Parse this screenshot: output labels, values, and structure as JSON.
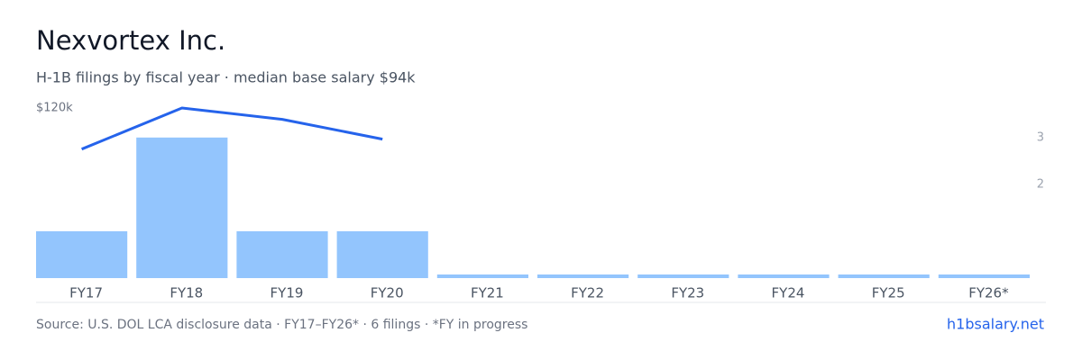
{
  "chart_data": {
    "type": "bar-line",
    "title": "Nexvortex Inc.",
    "subtitle": "H-1B filings by fiscal year · median base salary $94k",
    "categories": [
      "FY17",
      "FY18",
      "FY19",
      "FY20",
      "FY21",
      "FY22",
      "FY23",
      "FY24",
      "FY25",
      "FY26*"
    ],
    "series": [
      {
        "name": "Filings",
        "color": "#93c5fd",
        "axis": "y2",
        "values": [
          1,
          3,
          1,
          1,
          0,
          0,
          0,
          0,
          0,
          0
        ]
      },
      {
        "name": "Median base salary",
        "color": "#2563eb",
        "axis": "y",
        "values": [
          91000,
          120000,
          112000,
          98000,
          null,
          null,
          null,
          null,
          null,
          null
        ]
      }
    ],
    "ylim": [
      0,
      120000
    ],
    "yticks": [
      {
        "value": 120000,
        "label": "$120k"
      }
    ],
    "y2lim": [
      0,
      3.63
    ],
    "y2ticks": [
      2,
      3
    ],
    "source": "Source: U.S. DOL LCA disclosure data · FY17–FY26* · 6 filings · *FY in progress",
    "brand": "h1bsalary.net"
  }
}
